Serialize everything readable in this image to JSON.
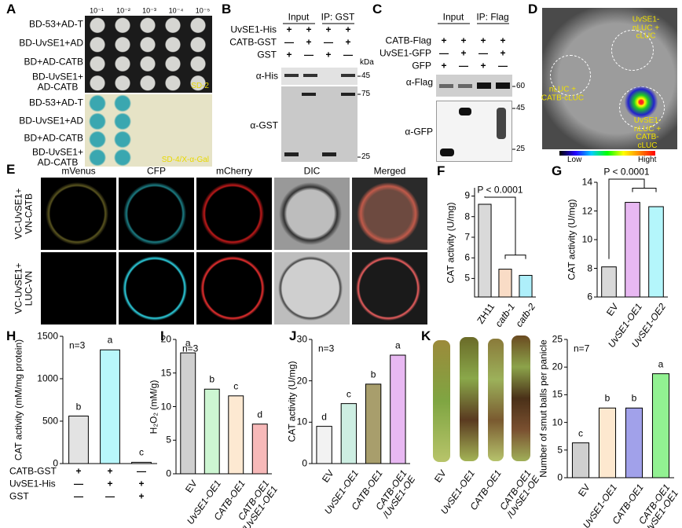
{
  "panel_letters": [
    "A",
    "B",
    "C",
    "D",
    "E",
    "F",
    "G",
    "H",
    "I",
    "J",
    "K"
  ],
  "panel_a": {
    "dilutions": [
      "10⁻¹",
      "10⁻²",
      "10⁻³",
      "10⁻⁴",
      "10⁻⁵"
    ],
    "rows_sd2": [
      "BD-53+AD-T",
      "BD-UvSE1+AD",
      "BD+AD-CATB",
      "BD-UvSE1+\nAD-CATB"
    ],
    "rows_xgal": [
      "BD-53+AD-T",
      "BD-UvSE1+AD",
      "BD+AD-CATB",
      "BD-UvSE1+\nAD-CATB"
    ],
    "media": [
      "SD-2",
      "SD-4/X-α-Gal"
    ]
  },
  "panel_b": {
    "headers": [
      "Input",
      "IP: GST"
    ],
    "rows": [
      {
        "label": "UvSE1-His",
        "signs": [
          "+",
          "+",
          "+",
          "+"
        ]
      },
      {
        "label": "CATB-GST",
        "signs": [
          "—",
          "+",
          "—",
          "+"
        ]
      },
      {
        "label": "GST",
        "signs": [
          "+",
          "—",
          "+",
          "—"
        ]
      }
    ],
    "kda": "kDa",
    "antibodies": [
      "α-His",
      "α-GST"
    ],
    "markers": [
      45,
      75,
      25
    ]
  },
  "panel_c": {
    "headers": [
      "Input",
      "IP: Flag"
    ],
    "rows": [
      {
        "label": "CATB-Flag",
        "signs": [
          "+",
          "+",
          "+",
          "+"
        ]
      },
      {
        "label": "UvSE1-GFP",
        "signs": [
          "—",
          "+",
          "—",
          "+"
        ]
      },
      {
        "label": "GFP",
        "signs": [
          "+",
          "—",
          "+",
          "—"
        ]
      }
    ],
    "antibodies": [
      "α-Flag",
      "α-GFP"
    ],
    "markers": [
      60,
      45,
      25
    ]
  },
  "panel_d": {
    "labels": [
      "UvSE1-nLUC +\ncLUC",
      "nLUC +\nCATB-cLUC",
      "UvSE1-nLUC +\nCATB-cLUC"
    ],
    "scale": [
      "Low",
      "Hight"
    ]
  },
  "panel_e": {
    "columns": [
      "mVenus",
      "CFP",
      "mCherry",
      "DIC",
      "Merged"
    ],
    "rows": [
      "VC-UvSE1+\nVN-CATB",
      "VC-UvSE1+\nLUC-VN"
    ]
  },
  "panel_k_photo": [
    "EV",
    "UvSE1-OE1",
    "CATB-OE1",
    "CATB-OE1\n/UvSE1-OE"
  ],
  "chart_data": [
    {
      "type": "bar",
      "panel": "F",
      "ylabel": "CAT activity (U/mg)",
      "categories": [
        "ZH11",
        "catb-1",
        "catb-2"
      ],
      "italic": [
        false,
        true,
        true
      ],
      "values": [
        8.6,
        5.45,
        5.15
      ],
      "colors": [
        "#d9d9d9",
        "#f9dcc6",
        "#aeeffa"
      ],
      "ylim": [
        4.1,
        9.4
      ],
      "yticks": [
        5,
        6,
        7,
        8,
        9
      ],
      "annotation": "P < 0.0001"
    },
    {
      "type": "bar",
      "panel": "G",
      "ylabel": "CAT activity (U/mg)",
      "categories": [
        "EV",
        "UvSE1-OE1",
        "UvSE1-OE2"
      ],
      "italic": [
        false,
        true,
        true
      ],
      "values": [
        8.1,
        12.6,
        12.3
      ],
      "colors": [
        "#d9d9d9",
        "#e8b8f2",
        "#b4f6fb"
      ],
      "ylim": [
        6,
        14
      ],
      "yticks": [
        6,
        8,
        10,
        12,
        14
      ],
      "annotation": "P < 0.0001"
    },
    {
      "type": "bar",
      "panel": "H",
      "ylabel": "CAT activity (mM/mg protein)",
      "values": [
        560,
        1340,
        15
      ],
      "colors": [
        "#e3e3e3",
        "#b8f7fb",
        "#ffffff"
      ],
      "letters": [
        "b",
        "a",
        "c"
      ],
      "annotation": "n=3",
      "ylim": [
        0,
        1500
      ],
      "yticks": [
        0,
        500,
        1000,
        1500
      ],
      "table": [
        {
          "label": "CATB-GST",
          "signs": [
            "+",
            "+",
            "—"
          ]
        },
        {
          "label": "UvSE1-His",
          "signs": [
            "—",
            "+",
            "+"
          ]
        },
        {
          "label": "GST",
          "signs": [
            "—",
            "—",
            "+"
          ]
        }
      ]
    },
    {
      "type": "bar",
      "panel": "I",
      "ylabel": "H₂O₂ (mM/g)",
      "categories": [
        "EV",
        "UvSE1-OE1",
        "CATB-OE1",
        "CATB-OE1\n/UvSE1-OE1"
      ],
      "italic": [
        false,
        true,
        true,
        true
      ],
      "values": [
        18,
        12.6,
        11.6,
        7.4
      ],
      "colors": [
        "#cfcfcf",
        "#cdf6d2",
        "#fde9d2",
        "#f7b9b9"
      ],
      "letters": [
        "a",
        "b",
        "c",
        "d"
      ],
      "annotation": "n=3",
      "ylim": [
        0,
        20
      ],
      "yticks": [
        0,
        5,
        10,
        15,
        20
      ]
    },
    {
      "type": "bar",
      "panel": "J",
      "ylabel": "CAT activity (U/mg)",
      "categories": [
        "EV",
        "UvSE1-OE1",
        "CATB-OE1",
        "CATB-OE1\n/UvSE1-OE"
      ],
      "italic": [
        false,
        true,
        true,
        true
      ],
      "values": [
        9,
        14.5,
        19.2,
        26.2
      ],
      "colors": [
        "#f2f2f2",
        "#cdeee2",
        "#a89e6c",
        "#e8b8f2"
      ],
      "letters": [
        "d",
        "c",
        "b",
        "a"
      ],
      "annotation": "n=3",
      "ylim": [
        0,
        30
      ],
      "yticks": [
        0,
        10,
        20,
        30
      ]
    },
    {
      "type": "bar",
      "panel": "K",
      "ylabel": "Number of smut balls per panicle",
      "categories": [
        "EV",
        "UvSE1-OE1",
        "CATB-OE1",
        "CATB-OE1\n/UvSE1-OE1"
      ],
      "italic": [
        false,
        true,
        true,
        true
      ],
      "values": [
        6.3,
        12.6,
        12.6,
        18.8
      ],
      "colors": [
        "#cfcfcf",
        "#fde8cf",
        "#a1a1ea",
        "#92f192"
      ],
      "letters": [
        "c",
        "b",
        "b",
        "a"
      ],
      "annotation": "n=7",
      "ylim": [
        0,
        25
      ],
      "yticks": [
        0,
        5,
        10,
        15,
        20,
        25
      ]
    }
  ]
}
